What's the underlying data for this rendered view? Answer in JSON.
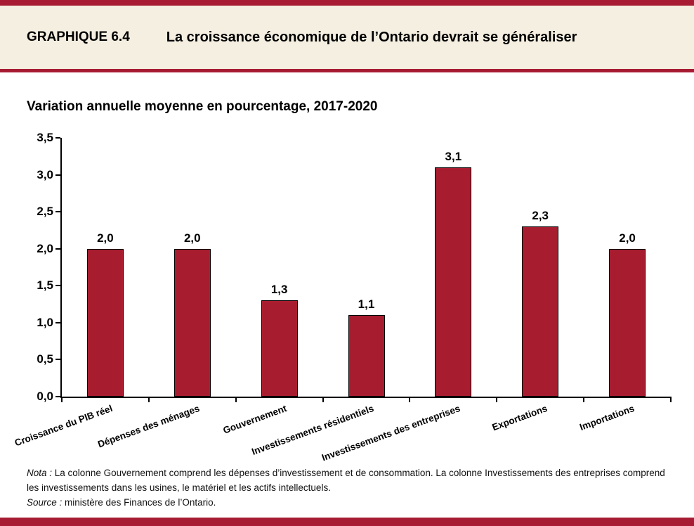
{
  "header": {
    "kicker": "GRAPHIQUE 6.4",
    "title": "La croissance économique de l’Ontario devrait se généraliser"
  },
  "subtitle": "Variation annuelle moyenne en pourcentage, 2017-2020",
  "colors": {
    "accent_red": "#A71C32",
    "bar_fill": "#A81C30",
    "bar_border": "#000000",
    "header_bg": "#F5EFE1",
    "axis": "#000000"
  },
  "chart_data": {
    "type": "bar",
    "title": "Variation annuelle moyenne en pourcentage, 2017-2020",
    "categories": [
      "Croissance du PIB réel",
      "Dépenses des ménages",
      "Gouvernement",
      "Investissements résidentiels",
      "Investissements des entreprises",
      "Exportations",
      "Importations"
    ],
    "values": [
      2.0,
      2.0,
      1.3,
      1.1,
      3.1,
      2.3,
      2.0
    ],
    "value_labels": [
      "2,0",
      "2,0",
      "1,3",
      "1,1",
      "3,1",
      "2,3",
      "2,0"
    ],
    "xlabel": "",
    "ylabel": "",
    "ylim": [
      0,
      3.5
    ],
    "y_tick_values": [
      0,
      0.5,
      1.0,
      1.5,
      2.0,
      2.5,
      3.0,
      3.5
    ],
    "y_tick_labels": [
      "0,0",
      "0,5",
      "1,0",
      "1,5",
      "2,0",
      "2,5",
      "3,0",
      "3,5"
    ],
    "grid": false,
    "legend": false
  },
  "notes": {
    "nota_label": "Nota :",
    "nota_text": " La colonne Gouvernement comprend les dépenses d’investissement et de consommation. La colonne Investissements des entreprises comprend les investissements dans les usines, le matériel et les actifs intellectuels.",
    "source_label": "Source  :",
    "source_text": " ministère des Finances de l’Ontario."
  }
}
